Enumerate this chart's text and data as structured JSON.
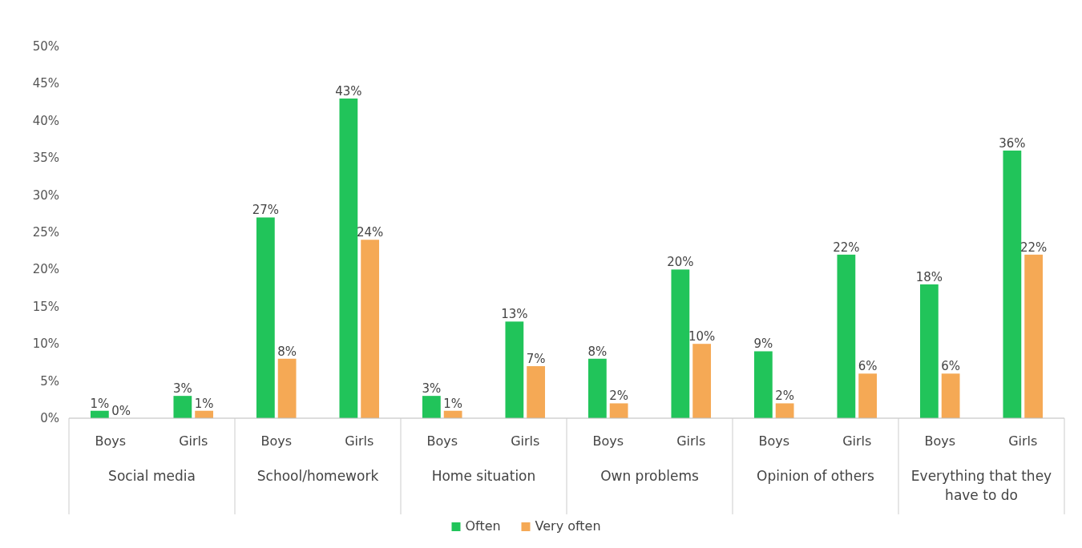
{
  "chart_data": {
    "type": "bar",
    "categories": [
      "Boys",
      "Girls",
      "Boys",
      "Girls",
      "Boys",
      "Girls",
      "Boys",
      "Girls",
      "Boys",
      "Girls",
      "Boys",
      "Girls"
    ],
    "series": [
      {
        "name": "Often",
        "color": "#21c45a",
        "values": [
          1,
          3,
          27,
          43,
          3,
          13,
          8,
          20,
          9,
          22,
          18,
          36
        ],
        "value_labels": [
          "1%",
          "3%",
          "27%",
          "43%",
          "3%",
          "13%",
          "8%",
          "20%",
          "9%",
          "22%",
          "18%",
          "36%"
        ]
      },
      {
        "name": "Very often",
        "color": "#f5a955",
        "values": [
          0,
          1,
          8,
          24,
          1,
          7,
          2,
          10,
          2,
          6,
          6,
          22
        ],
        "value_labels": [
          "0%",
          "1%",
          "8%",
          "24%",
          "1%",
          "7%",
          "2%",
          "10%",
          "2%",
          "6%",
          "6%",
          "22%"
        ]
      }
    ],
    "annotations": [
      "Social media",
      "School/homework",
      "Home situation",
      "Own problems",
      "Opinion of others",
      "Everything that they have to do"
    ],
    "ylim": [
      0,
      50
    ],
    "yticks": [
      {
        "value": 0,
        "label": "0%"
      },
      {
        "value": 5,
        "label": "5%"
      },
      {
        "value": 10,
        "label": "10%"
      },
      {
        "value": 15,
        "label": "15%"
      },
      {
        "value": 20,
        "label": "20%"
      },
      {
        "value": 25,
        "label": "25%"
      },
      {
        "value": 30,
        "label": "30%"
      },
      {
        "value": 35,
        "label": "35%"
      },
      {
        "value": 40,
        "label": "40%"
      },
      {
        "value": 45,
        "label": "45%"
      },
      {
        "value": 50,
        "label": "50%"
      }
    ],
    "grid": false,
    "legend": "bottom"
  }
}
